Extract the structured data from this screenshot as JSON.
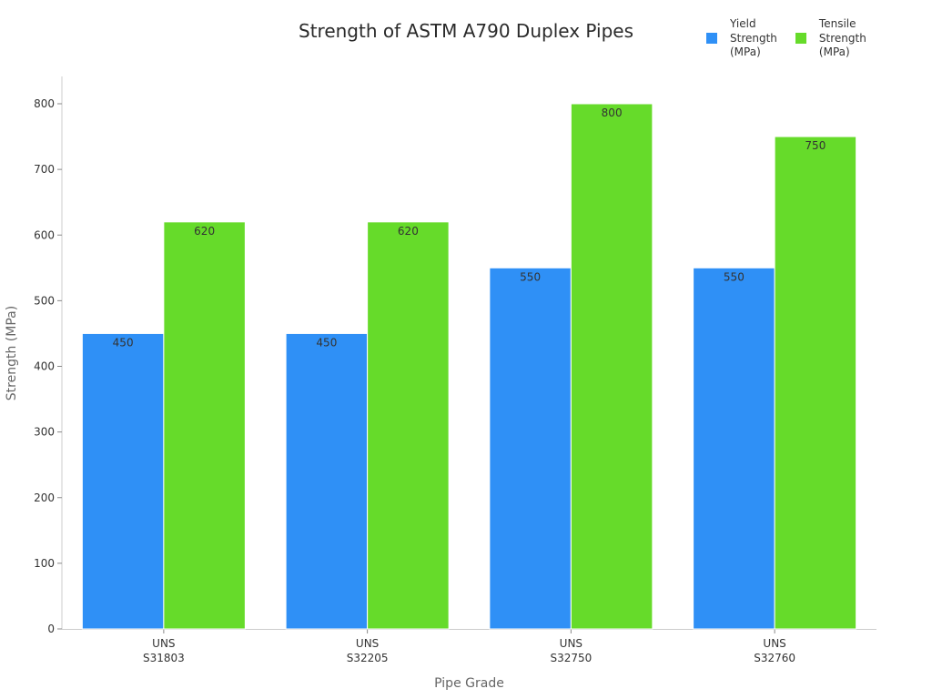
{
  "chart_data": {
    "type": "bar",
    "title": "Strength of ASTM A790 Duplex Pipes",
    "xlabel": "Pipe Grade",
    "ylabel": "Strength (MPa)",
    "categories": [
      "UNS S31803",
      "UNS S32205",
      "UNS S32750",
      "UNS S32760"
    ],
    "category_lines": [
      [
        "UNS",
        "S31803"
      ],
      [
        "UNS",
        "S32205"
      ],
      [
        "UNS",
        "S32750"
      ],
      [
        "UNS",
        "S32760"
      ]
    ],
    "series": [
      {
        "name": "Yield Strength (MPa)",
        "color": "#2f90f6",
        "values": [
          450,
          450,
          550,
          550
        ]
      },
      {
        "name": "Tensile Strength (MPa)",
        "color": "#66db2a",
        "values": [
          620,
          620,
          800,
          750
        ]
      }
    ],
    "ylim": [
      0,
      840
    ],
    "yticks": [
      0,
      100,
      200,
      300,
      400,
      500,
      600,
      700,
      800
    ],
    "grid": false,
    "legend_position": "top-right",
    "data_labels": true
  },
  "legend": {
    "items": [
      {
        "label": "Yield\nStrength\n(MPa)",
        "color": "#2f90f6"
      },
      {
        "label": "Tensile\nStrength\n(MPa)",
        "color": "#66db2a"
      }
    ]
  }
}
